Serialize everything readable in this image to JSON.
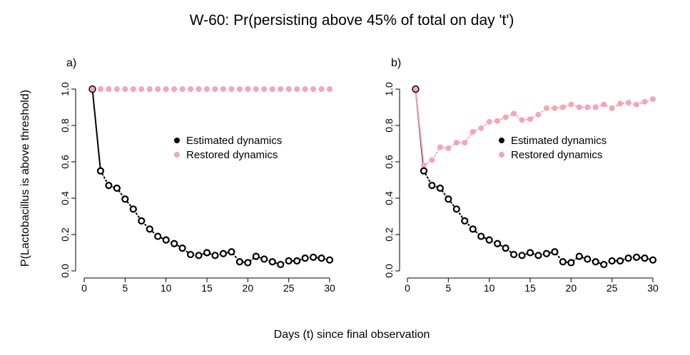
{
  "figure": {
    "title": "W-60: Pr(persisting above 45% of total on day 't')",
    "xlabel": "Days (t) since final observation",
    "ylabel": "P(Lactobacillus is above threshold)"
  },
  "colors": {
    "estimated": "#000000",
    "restored": "#f4a6b4"
  },
  "chart_data": [
    {
      "type": "scatter",
      "panel_label": "a)",
      "xlim": [
        0,
        30
      ],
      "ylim": [
        0,
        1
      ],
      "xticks": [
        "0",
        "5",
        "10",
        "15",
        "20",
        "25",
        "30"
      ],
      "yticks": [
        "0.0",
        "0.2",
        "0.4",
        "0.6",
        "0.8",
        "1.0"
      ],
      "legend_position": "center-right",
      "series": [
        {
          "name": "Estimated dynamics",
          "marker": "open-circle",
          "x": [
            1,
            2,
            3,
            4,
            5,
            6,
            7,
            8,
            9,
            10,
            11,
            12,
            13,
            14,
            15,
            16,
            17,
            18,
            19,
            20,
            21,
            22,
            23,
            24,
            25,
            26,
            27,
            28,
            29,
            30
          ],
          "values": [
            1.0,
            0.55,
            0.47,
            0.455,
            0.395,
            0.34,
            0.275,
            0.23,
            0.19,
            0.17,
            0.15,
            0.125,
            0.09,
            0.085,
            0.1,
            0.085,
            0.095,
            0.105,
            0.05,
            0.045,
            0.08,
            0.065,
            0.05,
            0.035,
            0.055,
            0.055,
            0.07,
            0.075,
            0.07,
            0.06
          ]
        },
        {
          "name": "Restored dynamics",
          "marker": "filled-circle",
          "x": [
            1,
            2,
            3,
            4,
            5,
            6,
            7,
            8,
            9,
            10,
            11,
            12,
            13,
            14,
            15,
            16,
            17,
            18,
            19,
            20,
            21,
            22,
            23,
            24,
            25,
            26,
            27,
            28,
            29,
            30
          ],
          "values": [
            1.0,
            1.0,
            1.0,
            1.0,
            1.0,
            1.0,
            1.0,
            1.0,
            1.0,
            1.0,
            1.0,
            1.0,
            1.0,
            1.0,
            1.0,
            1.0,
            1.0,
            1.0,
            1.0,
            1.0,
            1.0,
            1.0,
            1.0,
            1.0,
            1.0,
            1.0,
            1.0,
            1.0,
            1.0,
            1.0
          ]
        }
      ]
    },
    {
      "type": "scatter",
      "panel_label": "b)",
      "xlim": [
        0,
        30
      ],
      "ylim": [
        0,
        1
      ],
      "xticks": [
        "0",
        "5",
        "10",
        "15",
        "20",
        "25",
        "30"
      ],
      "yticks": [
        "0.0",
        "0.2",
        "0.4",
        "0.6",
        "0.8",
        "1.0"
      ],
      "legend_position": "center-right",
      "series": [
        {
          "name": "Estimated dynamics",
          "marker": "open-circle",
          "x": [
            1,
            2,
            3,
            4,
            5,
            6,
            7,
            8,
            9,
            10,
            11,
            12,
            13,
            14,
            15,
            16,
            17,
            18,
            19,
            20,
            21,
            22,
            23,
            24,
            25,
            26,
            27,
            28,
            29,
            30
          ],
          "values": [
            1.0,
            0.55,
            0.47,
            0.455,
            0.395,
            0.34,
            0.275,
            0.23,
            0.19,
            0.17,
            0.15,
            0.125,
            0.09,
            0.085,
            0.1,
            0.085,
            0.095,
            0.105,
            0.05,
            0.045,
            0.08,
            0.065,
            0.05,
            0.035,
            0.055,
            0.055,
            0.07,
            0.075,
            0.07,
            0.06
          ]
        },
        {
          "name": "Restored dynamics",
          "marker": "filled-circle",
          "x": [
            1,
            2,
            3,
            4,
            5,
            6,
            7,
            8,
            9,
            10,
            11,
            12,
            13,
            14,
            15,
            16,
            17,
            18,
            19,
            20,
            21,
            22,
            23,
            24,
            25,
            26,
            27,
            28,
            29,
            30
          ],
          "values": [
            1.0,
            0.58,
            0.61,
            0.68,
            0.675,
            0.705,
            0.705,
            0.765,
            0.785,
            0.82,
            0.825,
            0.845,
            0.865,
            0.83,
            0.835,
            0.86,
            0.895,
            0.895,
            0.9,
            0.915,
            0.9,
            0.9,
            0.9,
            0.915,
            0.895,
            0.92,
            0.925,
            0.915,
            0.93,
            0.945
          ]
        }
      ]
    }
  ]
}
